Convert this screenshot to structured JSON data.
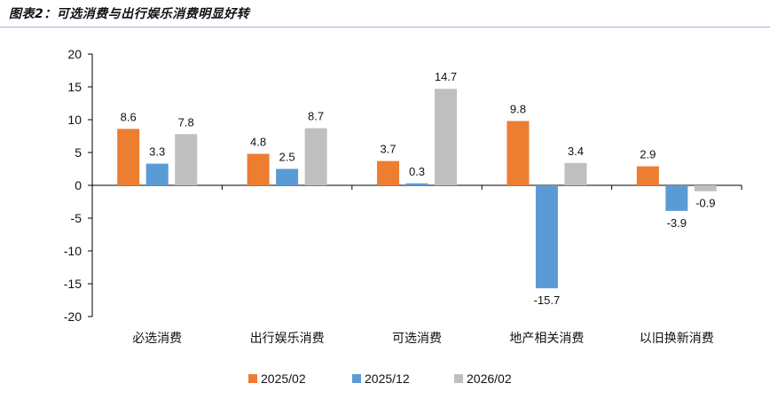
{
  "caption": "图表2：可选消费与出行娱乐消费明显好转",
  "chart_data": {
    "type": "bar",
    "categories": [
      "必选消费",
      "出行娱乐消费",
      "可选消费",
      "地产相关消费",
      "以旧换新消费"
    ],
    "series": [
      {
        "name": "2025/02",
        "color": "#ED7D31",
        "values": [
          8.6,
          4.8,
          3.7,
          9.8,
          2.9
        ]
      },
      {
        "name": "2025/12",
        "color": "#5B9BD5",
        "values": [
          3.3,
          2.5,
          0.3,
          -15.7,
          -3.9
        ]
      },
      {
        "name": "2026/02",
        "color": "#BFBFBF",
        "values": [
          7.8,
          8.7,
          14.7,
          3.4,
          -0.9
        ]
      }
    ],
    "ylim": [
      -20,
      20
    ],
    "yticks": [
      20,
      15,
      10,
      5,
      0,
      -5,
      -10,
      -15,
      -20
    ],
    "grid": false,
    "legend_position": "bottom"
  }
}
